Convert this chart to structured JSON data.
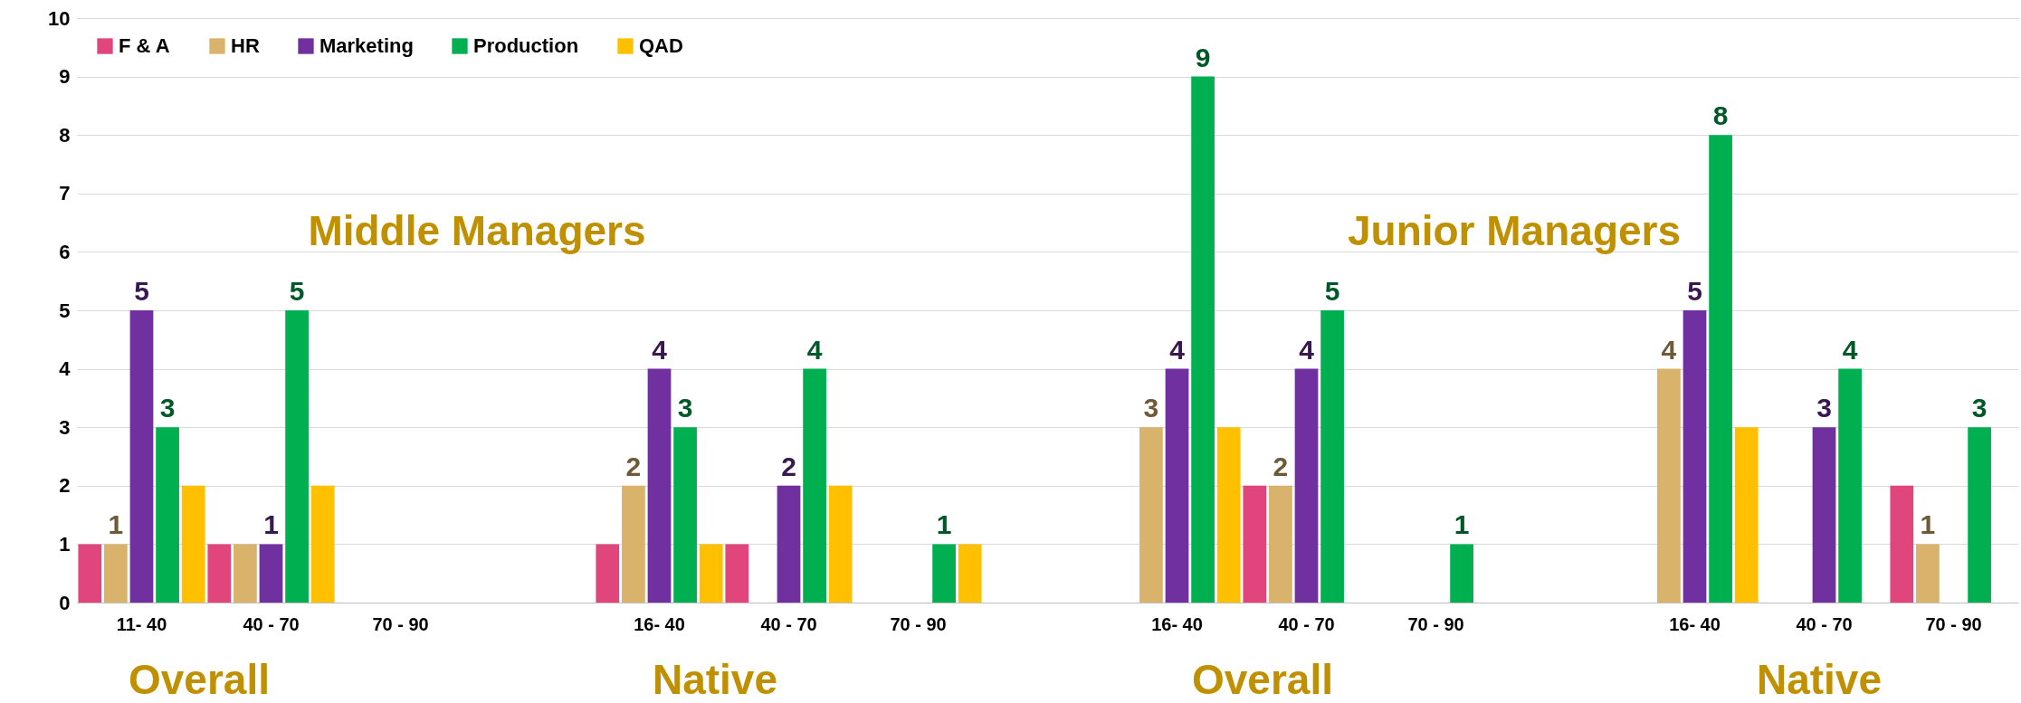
{
  "chart_data": {
    "type": "bar",
    "categories": [
      "11- 40",
      "40 - 70",
      "70 - 90",
      null,
      "16- 40",
      "40 - 70",
      "70 - 90",
      null,
      "16- 40",
      "40 - 70",
      "70 - 90",
      null,
      "16- 40",
      "40 - 70",
      "70 - 90"
    ],
    "series": [
      {
        "name": "F & A",
        "color": "#e0457b",
        "values": [
          1,
          1,
          null,
          null,
          1,
          1,
          null,
          null,
          null,
          2,
          null,
          null,
          null,
          null,
          2
        ]
      },
      {
        "name": "HR",
        "color": "#d9b36b",
        "values": [
          1,
          1,
          null,
          null,
          2,
          null,
          null,
          null,
          3,
          2,
          null,
          null,
          4,
          null,
          1
        ],
        "value_labels": [
          "1",
          null,
          null,
          null,
          "2",
          null,
          null,
          null,
          "3",
          "2",
          null,
          null,
          "4",
          null,
          "1"
        ]
      },
      {
        "name": "Marketing",
        "color": "#7030a0",
        "values": [
          5,
          1,
          null,
          null,
          4,
          2,
          null,
          null,
          4,
          4,
          null,
          null,
          5,
          3,
          null
        ],
        "value_labels": [
          "5",
          "1",
          null,
          null,
          "4",
          "2",
          null,
          null,
          "4",
          "4",
          null,
          null,
          "5",
          "3",
          null
        ]
      },
      {
        "name": "Production",
        "color": "#00b050",
        "values": [
          3,
          5,
          null,
          null,
          3,
          4,
          1,
          null,
          9,
          5,
          1,
          null,
          8,
          4,
          3
        ],
        "value_labels": [
          "3",
          "5",
          null,
          null,
          "3",
          "4",
          "1",
          null,
          "9",
          "5",
          "1",
          null,
          "8",
          "4",
          "3"
        ]
      },
      {
        "name": "QAD",
        "color": "#ffc000",
        "values": [
          2,
          2,
          null,
          null,
          1,
          2,
          1,
          null,
          3,
          null,
          null,
          null,
          3,
          null,
          null
        ]
      }
    ],
    "ylim": [
      0,
      10
    ],
    "yticks": [
      0,
      1,
      2,
      3,
      4,
      5,
      6,
      7,
      8,
      9,
      10
    ],
    "grid": "y",
    "legend": "top left",
    "annotations": [
      "Middle Managers",
      "Junior Managers",
      "Overall",
      "Native",
      "Overall",
      "Native"
    ]
  }
}
